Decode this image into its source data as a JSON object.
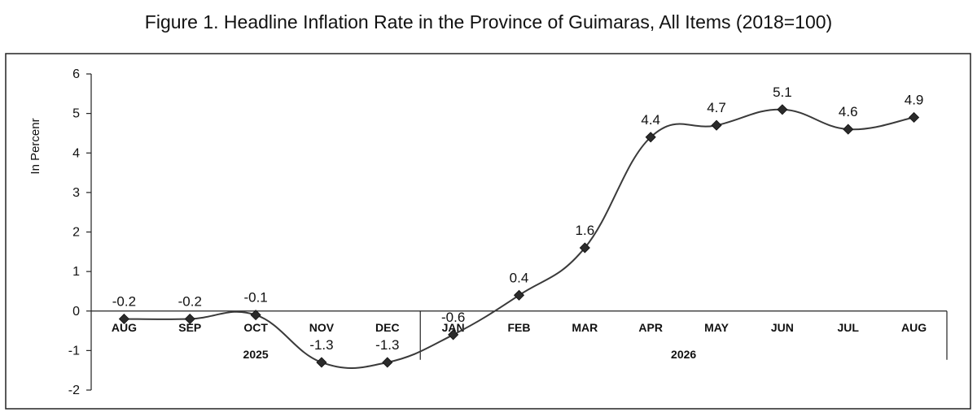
{
  "chart_data": {
    "type": "line",
    "title": "Figure 1. Headline Inflation Rate in the Province of Guimaras, All Items (2018=100)",
    "ylabel": "In Percenr",
    "xlabel": "",
    "ylim": [
      -2,
      6
    ],
    "yticks": [
      "6",
      "5",
      "4",
      "3",
      "2",
      "1",
      "0",
      "-1",
      "-2"
    ],
    "categories": [
      "AUG",
      "SEP",
      "OCT",
      "NOV",
      "DEC",
      "JAN",
      "FEB",
      "MAR",
      "APR",
      "MAY",
      "JUN",
      "JUL",
      "AUG"
    ],
    "year_groups": [
      {
        "label": "2025",
        "span": 5
      },
      {
        "label": "2026",
        "span": 8
      }
    ],
    "series": [
      {
        "values": [
          -0.2,
          -0.2,
          -0.1,
          -1.3,
          -1.3,
          -0.6,
          0.4,
          1.6,
          4.4,
          4.7,
          5.1,
          4.6,
          4.9
        ],
        "labels": [
          "-0.2",
          "-0.2",
          "-0.1",
          "-1.3",
          "-1.3",
          "-0.6",
          "0.4",
          "1.6",
          "4.4",
          "4.7",
          "5.1",
          "4.6",
          "4.9"
        ]
      }
    ],
    "line_color": "#3a3a3a",
    "marker": "diamond",
    "grid": false,
    "legend": "none"
  }
}
